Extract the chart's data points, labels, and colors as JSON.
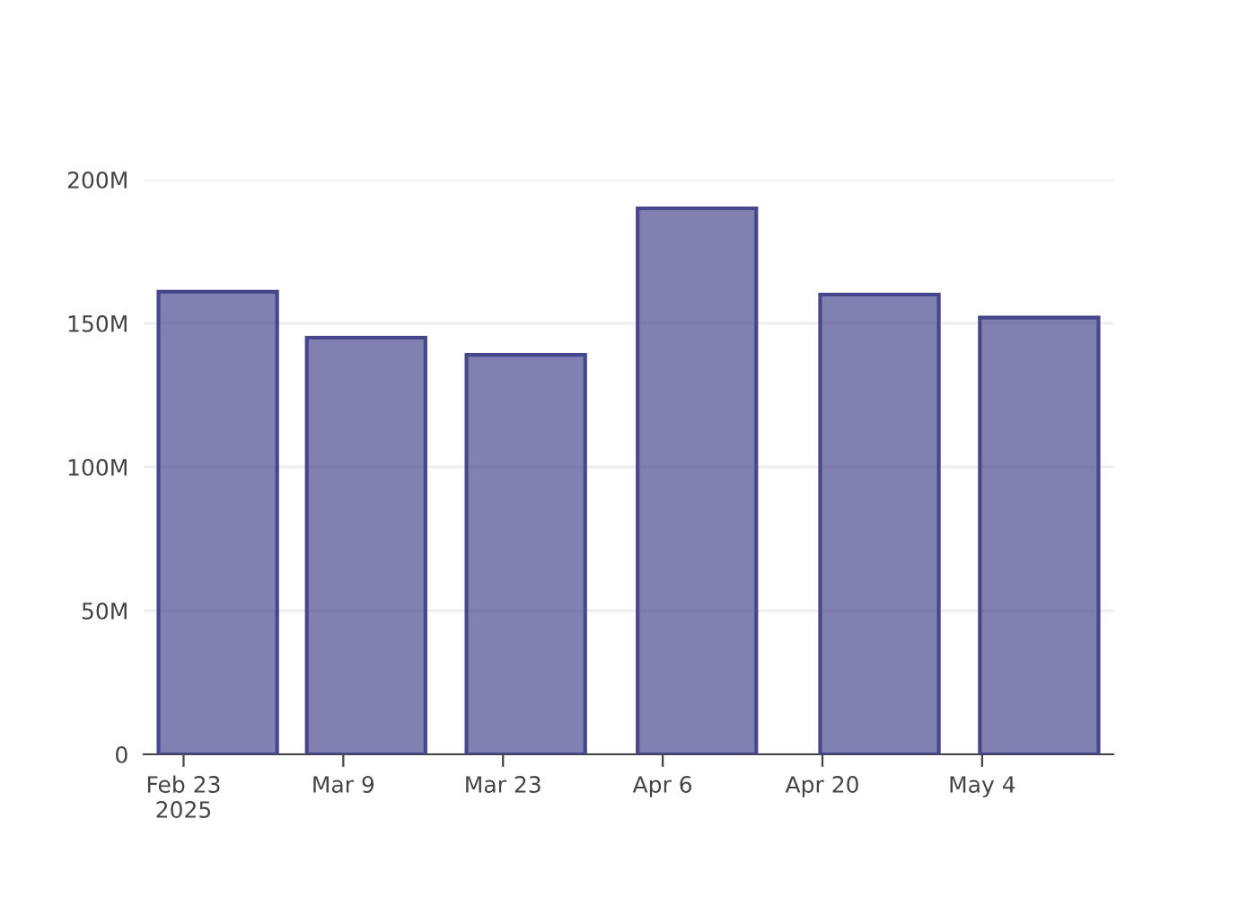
{
  "chart_data": {
    "type": "bar",
    "x": [
      "2025-02-26",
      "2025-03-11",
      "2025-03-25",
      "2025-04-09",
      "2025-04-25",
      "2025-05-09"
    ],
    "values": [
      161,
      145,
      139,
      190,
      160,
      152
    ],
    "color": "#46468c",
    "xlim": [
      "2025-02-19T12:00",
      "2025-05-15T12:00"
    ],
    "xticks": [
      {
        "value": "2025-02-23",
        "label": "Feb 23\n2025"
      },
      {
        "value": "2025-03-09",
        "label": "Mar 9"
      },
      {
        "value": "2025-03-23",
        "label": "Mar 23"
      },
      {
        "value": "2025-04-06",
        "label": "Apr 6"
      },
      {
        "value": "2025-04-20",
        "label": "Apr 20"
      },
      {
        "value": "2025-05-04",
        "label": "May 4"
      }
    ],
    "ylim": [
      0,
      200
    ],
    "yticks": [
      {
        "value": 0,
        "label": "0"
      },
      {
        "value": 50,
        "label": "50M"
      },
      {
        "value": 100,
        "label": "100M"
      },
      {
        "value": 150,
        "label": "150M"
      },
      {
        "value": 200,
        "label": "200M"
      }
    ],
    "grid": "y"
  }
}
